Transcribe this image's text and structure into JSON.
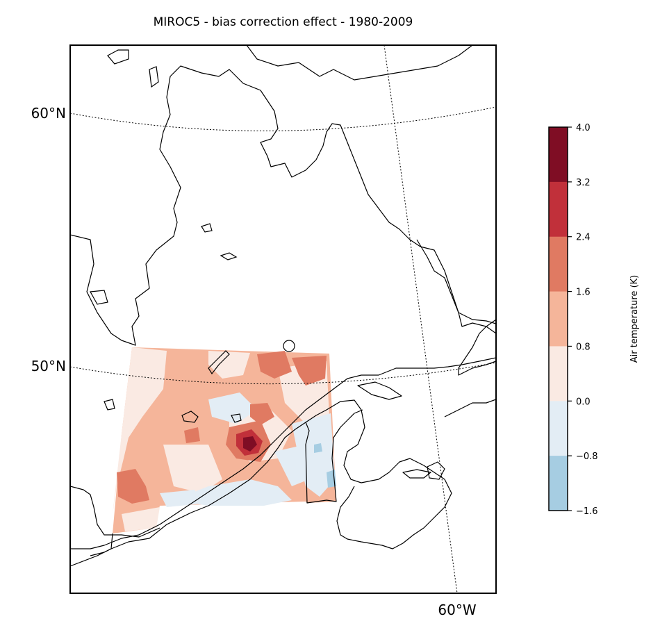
{
  "title": "MIROC5 - bias correction effect - 1980-2009",
  "gridlines": {
    "lat_labels": [
      "60°N",
      "50°N"
    ],
    "lon_labels": [
      "60°W"
    ]
  },
  "colorbar": {
    "label": "Air temperature (K)",
    "levels": [
      "4.0",
      "3.2",
      "2.4",
      "1.6",
      "0.8",
      "0.0",
      "−0.8",
      "−1.6"
    ],
    "colors": [
      "#7f0d24",
      "#c1303a",
      "#e07a62",
      "#f5b59a",
      "#faeae3",
      "#e3edf5",
      "#a6cde2"
    ]
  },
  "colors": {
    "coast": "#000000",
    "frame": "#000000"
  }
}
